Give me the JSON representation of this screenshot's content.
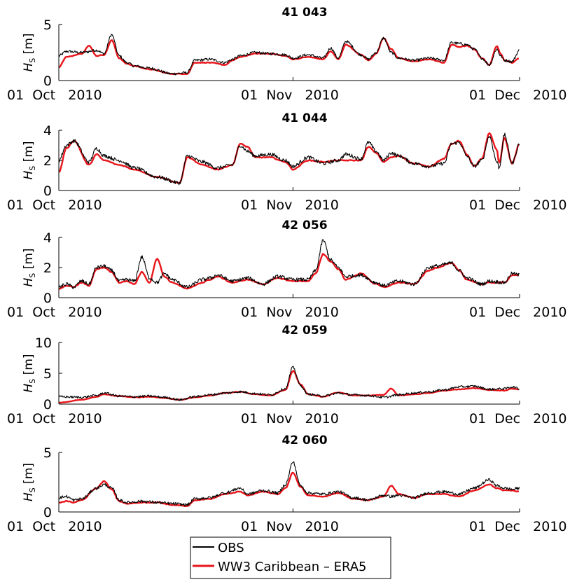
{
  "chart_data": {
    "type": "line",
    "shared_x_ticks": [
      "01 Oct 2010",
      "01 Nov 2010",
      "01 Dec 2010"
    ],
    "x_range_days": [
      0,
      61
    ],
    "ylabel_symbol": "H",
    "ylabel_subscript": "S",
    "ylabel_unit": " [m]",
    "legend": {
      "placement": "bottom-center",
      "entries": [
        {
          "label": "OBS",
          "color": "#000000"
        },
        {
          "label": "WW3 Caribbean – ERA5",
          "color": "#e8151b"
        }
      ]
    },
    "panels": [
      {
        "title": "41 043",
        "ylim": [
          0,
          5
        ],
        "yticks": [
          "0",
          "5"
        ],
        "series": [
          {
            "name": "OBS",
            "color": "#000000",
            "noise": 0.12,
            "x": [
              0,
              1,
              3,
              5,
              6,
              7,
              8,
              9,
              10,
              12,
              15,
              17,
              18,
              20,
              22,
              23,
              24,
              26,
              28,
              30,
              31,
              33,
              35,
              36,
              37,
              38,
              40,
              41,
              42,
              43,
              44,
              45,
              47,
              49,
              51,
              52,
              53,
              54,
              55,
              56,
              57,
              58,
              58.5,
              59,
              60,
              61
            ],
            "y": [
              2.2,
              2.6,
              2.5,
              2.7,
              2.4,
              4.1,
              2.2,
              1.6,
              1.3,
              1.1,
              0.6,
              0.7,
              1.8,
              1.9,
              1.6,
              1.9,
              2.2,
              2.5,
              2.4,
              2.3,
              2.0,
              2.3,
              2.0,
              2.9,
              2.0,
              3.5,
              2.3,
              1.9,
              2.5,
              3.8,
              2.5,
              2.0,
              1.8,
              2.0,
              1.8,
              3.4,
              3.3,
              3.2,
              2.8,
              2.0,
              1.4,
              2.8,
              2.2,
              1.8,
              1.7,
              2.7
            ]
          },
          {
            "name": "WW3 Caribbean – ERA5",
            "color": "#e8151b",
            "noise": 0.03,
            "x": [
              0,
              1,
              3,
              4,
              5,
              6,
              7,
              8,
              9,
              10,
              12,
              15,
              17,
              18,
              20,
              22,
              23,
              24,
              26,
              28,
              30,
              31,
              33,
              35,
              36,
              37,
              38,
              40,
              41,
              42,
              43,
              44,
              45,
              47,
              49,
              51,
              52,
              53,
              54,
              55,
              56,
              57,
              58,
              58.5,
              59,
              60,
              61
            ],
            "y": [
              1.2,
              2.1,
              2.4,
              3.1,
              2.2,
              2.3,
              3.6,
              2.0,
              1.5,
              1.3,
              1.0,
              0.6,
              0.6,
              1.6,
              1.6,
              1.4,
              1.8,
              2.1,
              2.4,
              2.4,
              2.2,
              1.9,
              2.1,
              1.9,
              2.6,
              1.9,
              3.2,
              2.3,
              1.8,
              2.4,
              3.8,
              2.8,
              2.0,
              1.7,
              1.9,
              1.6,
              3.2,
              3.0,
              3.1,
              2.8,
              2.0,
              1.4,
              3.1,
              2.4,
              1.8,
              1.6,
              2.0
            ]
          }
        ]
      },
      {
        "title": "41 044",
        "ylim": [
          0,
          4
        ],
        "yticks": [
          "0",
          "2",
          "4"
        ],
        "series": [
          {
            "name": "OBS",
            "color": "#000000",
            "noise": 0.12,
            "x": [
              0,
              1,
              2,
              4,
              5,
              6,
              8,
              10,
              13,
              16,
              17,
              19,
              21,
              23,
              24,
              25,
              26,
              28,
              30,
              31,
              33,
              35,
              37,
              38,
              40,
              41,
              42,
              43,
              44,
              45,
              47,
              49,
              51,
              52,
              53,
              54,
              55,
              56,
              57,
              58,
              58.3,
              59,
              60,
              61
            ],
            "y": [
              2.0,
              3.0,
              3.3,
              1.9,
              2.8,
              2.3,
              2.0,
              1.5,
              0.9,
              0.5,
              2.3,
              1.9,
              1.5,
              1.7,
              3.0,
              2.6,
              2.3,
              2.4,
              2.0,
              1.6,
              2.2,
              1.8,
              2.0,
              2.4,
              2.1,
              3.2,
              2.6,
              2.0,
              2.5,
              2.3,
              1.8,
              1.6,
              1.8,
              3.1,
              3.2,
              2.3,
              1.6,
              2.0,
              3.6,
              1.9,
              1.5,
              3.7,
              1.8,
              3.1
            ]
          },
          {
            "name": "WW3 Caribbean – ERA5",
            "color": "#e8151b",
            "noise": 0.03,
            "x": [
              0,
              1,
              2,
              4,
              5,
              6,
              8,
              10,
              13,
              16,
              17,
              19,
              21,
              23,
              24,
              25,
              26,
              28,
              30,
              31,
              33,
              35,
              37,
              38,
              40,
              41,
              42,
              43,
              44,
              45,
              47,
              49,
              51,
              52,
              53,
              54,
              55,
              56,
              57,
              58,
              58.3,
              59,
              60,
              61
            ],
            "y": [
              1.2,
              2.8,
              3.3,
              1.7,
              2.4,
              2.0,
              1.7,
              1.4,
              0.9,
              0.5,
              2.2,
              1.7,
              1.4,
              1.7,
              3.1,
              2.9,
              2.2,
              2.2,
              1.9,
              1.4,
              2.0,
              1.9,
              2.0,
              2.0,
              2.0,
              2.9,
              2.5,
              1.9,
              2.2,
              2.3,
              1.8,
              1.6,
              2.1,
              3.1,
              3.3,
              2.4,
              1.6,
              2.1,
              3.8,
              2.7,
              1.8,
              3.5,
              1.8,
              3.1
            ]
          }
        ]
      },
      {
        "title": "42 056",
        "ylim": [
          0,
          4
        ],
        "yticks": [
          "0",
          "2",
          "4"
        ],
        "series": [
          {
            "name": "OBS",
            "color": "#000000",
            "noise": 0.12,
            "x": [
              0,
              1,
              2,
              3,
              4,
              5,
              6,
              7,
              8,
              9,
              10,
              11,
              12,
              13,
              14,
              15,
              17,
              19,
              20,
              21,
              23,
              25,
              27,
              29,
              31,
              33,
              34,
              35,
              36,
              37,
              38,
              40,
              42,
              43,
              45,
              47,
              49,
              50,
              52,
              53,
              54,
              56,
              57,
              59,
              60,
              61
            ],
            "y": [
              0.7,
              0.9,
              0.7,
              1.1,
              0.9,
              2.0,
              2.1,
              1.8,
              1.1,
              1.2,
              1.1,
              2.7,
              1.3,
              1.0,
              1.6,
              1.2,
              0.7,
              1.2,
              1.3,
              1.5,
              1.1,
              1.3,
              0.9,
              1.4,
              1.2,
              1.2,
              1.8,
              3.8,
              2.5,
              2.0,
              1.4,
              1.5,
              1.0,
              0.8,
              1.1,
              0.9,
              2.0,
              2.1,
              2.3,
              1.8,
              1.3,
              0.9,
              1.1,
              1.0,
              1.6,
              1.5
            ]
          },
          {
            "name": "WW3 Caribbean – ERA5",
            "color": "#e8151b",
            "noise": 0.03,
            "x": [
              0,
              1,
              2,
              3,
              4,
              5,
              6,
              7,
              8,
              9,
              10,
              11,
              12,
              13,
              14,
              15,
              17,
              19,
              20,
              21,
              23,
              25,
              27,
              29,
              31,
              33,
              34,
              35,
              36,
              37,
              38,
              40,
              42,
              43,
              45,
              47,
              49,
              50,
              52,
              53,
              54,
              56,
              57,
              59,
              60,
              61
            ],
            "y": [
              0.6,
              0.8,
              0.7,
              1.0,
              0.8,
              1.9,
              2.0,
              1.7,
              1.0,
              1.1,
              0.9,
              1.7,
              1.0,
              2.6,
              1.4,
              1.0,
              0.6,
              1.0,
              1.2,
              1.4,
              1.0,
              1.2,
              0.9,
              1.3,
              1.1,
              1.1,
              1.6,
              2.9,
              2.4,
              1.9,
              1.2,
              1.6,
              0.9,
              0.7,
              1.0,
              0.9,
              1.8,
              2.0,
              2.3,
              1.8,
              1.2,
              0.9,
              1.0,
              1.0,
              1.5,
              1.5
            ]
          }
        ]
      },
      {
        "title": "42 059",
        "ylim": [
          0,
          10
        ],
        "yticks": [
          "0",
          "5",
          "10"
        ],
        "series": [
          {
            "name": "OBS",
            "color": "#000000",
            "noise": 0.18,
            "x": [
              0,
              3,
              5,
              6,
              8,
              10,
              12,
              14,
              16,
              18,
              20,
              22,
              24,
              26,
              28,
              30,
              31,
              32,
              33,
              35,
              37,
              39,
              41,
              43,
              45,
              47,
              49,
              51,
              53,
              55,
              57,
              59,
              60,
              61
            ],
            "y": [
              1.2,
              1.1,
              1.4,
              1.8,
              1.3,
              1.2,
              1.3,
              1.1,
              0.7,
              1.2,
              1.5,
              1.8,
              2.0,
              1.7,
              1.5,
              2.5,
              6.0,
              3.0,
              1.6,
              1.3,
              1.8,
              1.5,
              1.4,
              1.1,
              1.5,
              1.8,
              2.0,
              2.3,
              2.8,
              2.9,
              2.4,
              2.5,
              2.8,
              2.5
            ]
          },
          {
            "name": "WW3 Caribbean – ERA5",
            "color": "#e8151b",
            "noise": 0.04,
            "x": [
              0,
              0.5,
              3,
              5,
              6,
              8,
              10,
              12,
              14,
              16,
              18,
              20,
              22,
              24,
              26,
              28,
              30,
              31,
              32,
              33,
              35,
              37,
              39,
              41,
              43,
              44,
              45,
              47,
              49,
              51,
              53,
              55,
              57,
              59,
              60,
              61
            ],
            "y": [
              0.2,
              0.3,
              0.7,
              1.2,
              1.6,
              1.3,
              1.1,
              1.2,
              1.0,
              0.7,
              1.1,
              1.4,
              1.8,
              2.0,
              1.6,
              1.4,
              2.3,
              5.4,
              3.2,
              1.6,
              1.2,
              1.9,
              1.4,
              1.4,
              1.5,
              2.5,
              1.4,
              1.6,
              1.8,
              2.2,
              2.4,
              2.6,
              2.3,
              2.2,
              2.5,
              2.4
            ]
          }
        ]
      },
      {
        "title": "42 060",
        "ylim": [
          0,
          5
        ],
        "yticks": [
          "0",
          "5"
        ],
        "series": [
          {
            "name": "OBS",
            "color": "#000000",
            "noise": 0.12,
            "x": [
              0,
              1,
              2,
              3,
              5,
              6,
              7,
              8,
              9,
              11,
              13,
              15,
              17,
              18,
              20,
              22,
              24,
              25,
              27,
              29,
              30,
              31,
              32,
              33,
              35,
              37,
              39,
              41,
              43,
              44,
              45,
              47,
              49,
              51,
              53,
              55,
              57,
              58,
              59,
              60,
              61
            ],
            "y": [
              1.2,
              1.3,
              1.0,
              1.1,
              2.0,
              2.3,
              2.0,
              1.0,
              0.8,
              0.9,
              0.8,
              0.7,
              0.6,
              1.1,
              1.2,
              1.6,
              2.0,
              1.5,
              1.8,
              1.6,
              2.3,
              4.2,
              2.2,
              1.6,
              1.5,
              1.7,
              1.2,
              1.0,
              1.4,
              1.3,
              1.4,
              1.2,
              1.6,
              1.7,
              1.5,
              2.0,
              2.7,
              2.2,
              2.0,
              1.9,
              2.0
            ]
          },
          {
            "name": "WW3 Caribbean – ERA5",
            "color": "#e8151b",
            "noise": 0.03,
            "x": [
              0,
              1,
              2,
              3,
              5,
              6,
              7,
              8,
              9,
              11,
              13,
              15,
              17,
              18,
              20,
              22,
              24,
              25,
              27,
              29,
              30,
              31,
              32,
              33,
              35,
              37,
              39,
              41,
              43,
              44,
              45,
              47,
              49,
              51,
              53,
              55,
              57,
              58,
              59,
              60,
              61
            ],
            "y": [
              0.8,
              0.9,
              0.8,
              1.0,
              2.0,
              2.6,
              1.9,
              0.9,
              0.7,
              0.8,
              0.8,
              0.6,
              0.5,
              1.0,
              1.1,
              1.5,
              1.7,
              1.4,
              1.7,
              1.5,
              2.0,
              3.3,
              2.1,
              1.4,
              1.3,
              1.6,
              1.1,
              1.0,
              1.3,
              2.2,
              1.5,
              1.2,
              1.5,
              1.5,
              1.3,
              1.8,
              2.3,
              2.0,
              1.8,
              1.8,
              1.7
            ]
          }
        ]
      }
    ]
  }
}
